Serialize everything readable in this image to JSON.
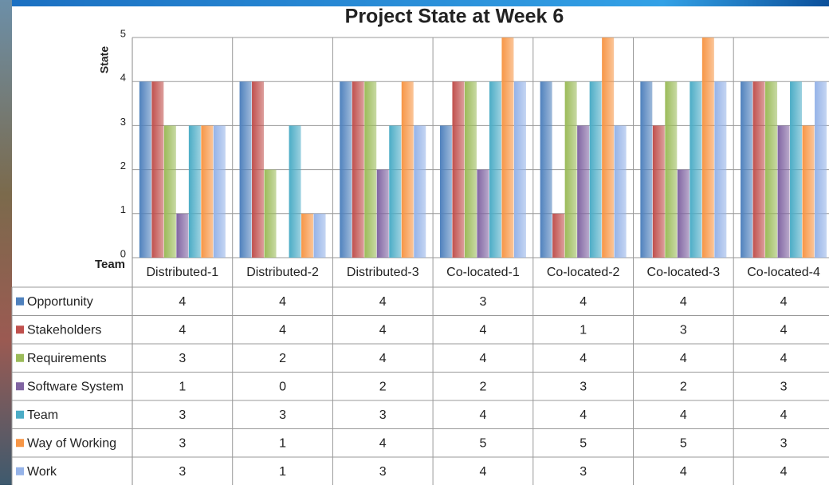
{
  "chart_data": {
    "type": "bar",
    "title": "Project State at Week 6",
    "y_label": "State",
    "x_label": "Team",
    "categories": [
      "Distributed-1",
      "Distributed-2",
      "Distributed-3",
      "Co-located-1",
      "Co-located-2",
      "Co-located-3",
      "Co-located-4"
    ],
    "series": [
      {
        "name": "Opportunity",
        "color": "#4f81bd",
        "values": [
          4,
          4,
          4,
          3,
          4,
          4,
          4
        ]
      },
      {
        "name": "Stakeholders",
        "color": "#c0504d",
        "values": [
          4,
          4,
          4,
          4,
          1,
          3,
          4
        ]
      },
      {
        "name": "Requirements",
        "color": "#9bbb59",
        "values": [
          3,
          2,
          4,
          4,
          4,
          4,
          4
        ]
      },
      {
        "name": "Software System",
        "color": "#8064a2",
        "values": [
          1,
          0,
          2,
          2,
          3,
          2,
          3
        ]
      },
      {
        "name": "Team",
        "color": "#4bacc6",
        "values": [
          3,
          3,
          3,
          4,
          4,
          4,
          4
        ]
      },
      {
        "name": "Way of Working",
        "color": "#f79646",
        "values": [
          3,
          1,
          4,
          5,
          5,
          5,
          3
        ]
      },
      {
        "name": "Work",
        "color": "#95b3e8",
        "values": [
          3,
          1,
          3,
          4,
          3,
          4,
          4
        ]
      }
    ],
    "ylim": [
      0,
      5
    ],
    "yticks": [
      0,
      1,
      2,
      3,
      4,
      5
    ],
    "grid": true
  }
}
